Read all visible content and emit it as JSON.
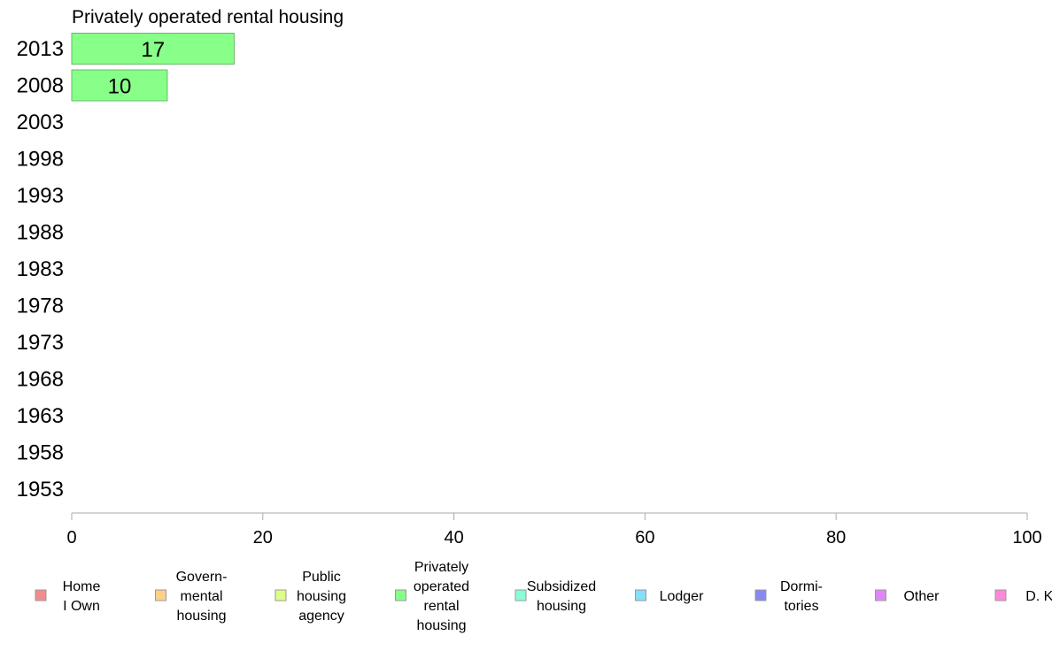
{
  "chart_data": {
    "type": "bar",
    "orientation": "horizontal",
    "title": "Privately operated rental housing",
    "xlabel": "",
    "ylabel": "",
    "categories": [
      "2013",
      "2008",
      "2003",
      "1998",
      "1993",
      "1988",
      "1983",
      "1978",
      "1973",
      "1968",
      "1963",
      "1958",
      "1953"
    ],
    "series": [
      {
        "name": "Privately operated rental housing",
        "color": "#88ff88",
        "values": [
          17,
          10,
          null,
          null,
          null,
          null,
          null,
          null,
          null,
          null,
          null,
          null,
          null
        ],
        "labels": [
          "17",
          "10",
          "",
          "",
          "",
          "",
          "",
          "",
          "",
          "",
          "",
          "",
          ""
        ]
      }
    ],
    "xlim": [
      0,
      100
    ],
    "xticks": [
      0,
      20,
      40,
      60,
      80,
      100
    ],
    "xtick_labels": [
      "0",
      "20",
      "40",
      "60",
      "80",
      "100"
    ],
    "grid": false,
    "legend_position": "bottom",
    "legend": [
      {
        "lines": [
          "Home",
          "I Own"
        ],
        "color": "#f28b8b"
      },
      {
        "lines": [
          "Govern-",
          "mental",
          " housing"
        ],
        "color": "#ffd08a"
      },
      {
        "lines": [
          "Public",
          "housing",
          "agency"
        ],
        "color": "#ddff88"
      },
      {
        "lines": [
          "Privately",
          "operated",
          "rental",
          "housing"
        ],
        "color": "#88ff88"
      },
      {
        "lines": [
          "Subsidized",
          " housing"
        ],
        "color": "#88ffd8"
      },
      {
        "lines": [
          "Lodger"
        ],
        "color": "#88ddf8"
      },
      {
        "lines": [
          "Dormi-",
          "tories"
        ],
        "color": "#8888f2"
      },
      {
        "lines": [
          "Other"
        ],
        "color": "#dd88f8"
      },
      {
        "lines": [
          "D. K."
        ],
        "color": "#ff88d8"
      }
    ]
  }
}
